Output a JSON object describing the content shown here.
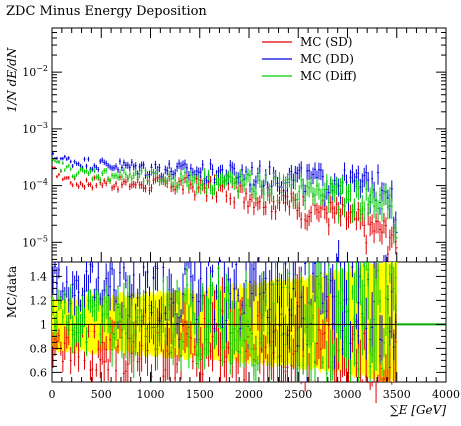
{
  "title": "ZDC Minus Energy Deposition",
  "chart_data": [
    {
      "type": "scatter",
      "panel": "main",
      "title": "ZDC Minus Energy Deposition",
      "ylabel": "1/N dE/dN",
      "xlabel": "",
      "x_range": [
        0,
        4000
      ],
      "y_range": [
        4.5e-06,
        0.06
      ],
      "y_scale": "log",
      "y_ticks": [
        {
          "value": 1e-05,
          "label": "10^-5"
        },
        {
          "value": 0.0001,
          "label": "10^-4"
        },
        {
          "value": 0.001,
          "label": "10^-3"
        },
        {
          "value": 0.01,
          "label": "10^-2"
        }
      ],
      "legend_position": "top-right",
      "series": [
        {
          "name": "MC (SD)",
          "color": "#e00000",
          "x": [
            25,
            250,
            500,
            750,
            1000,
            1250,
            1500,
            1750,
            2000,
            2250,
            2500,
            2750,
            3000,
            3250,
            3450,
            3500
          ],
          "values": [
            0.00018,
            0.00011,
            0.00012,
            0.00011,
            0.00011,
            0.00011,
            0.0001,
            9e-05,
            7.5e-05,
            6e-05,
            5e-05,
            4e-05,
            3e-05,
            2e-05,
            1.5e-05,
            8e-06
          ]
        },
        {
          "name": "MC (DD)",
          "color": "#0000dd",
          "x": [
            25,
            250,
            500,
            750,
            1000,
            1250,
            1500,
            1750,
            2000,
            2250,
            2500,
            2750,
            3000,
            3250,
            3450,
            3500
          ],
          "values": [
            0.00032,
            0.00026,
            0.00024,
            0.00022,
            0.0002,
            0.00019,
            0.00018,
            0.00017,
            0.00016,
            0.00015,
            0.00014,
            0.00013,
            0.00012,
            0.00011,
            0.0001,
            1.5e-05
          ]
        },
        {
          "name": "MC (Diff)",
          "color": "#00cc00",
          "x": [
            25,
            250,
            500,
            750,
            1000,
            1250,
            1500,
            1750,
            2000,
            2250,
            2500,
            2750,
            3000,
            3250,
            3450,
            3500
          ],
          "values": [
            0.00025,
            0.00017,
            0.00016,
            0.00015,
            0.00014,
            0.00013,
            0.00013,
            0.00012,
            0.00011,
            0.0001,
            9e-05,
            8e-05,
            7e-05,
            6e-05,
            5e-05,
            1.2e-05
          ]
        }
      ]
    },
    {
      "type": "area",
      "panel": "ratio",
      "ylabel": "MC/data",
      "xlabel": "∑E [GeV]",
      "x_range": [
        0,
        4000
      ],
      "y_range": [
        0.52,
        1.52
      ],
      "x_ticks": [
        0,
        500,
        1000,
        1500,
        2000,
        2500,
        3000,
        3500,
        4000
      ],
      "y_ticks": [
        0.6,
        0.8,
        1,
        1.2,
        1.4
      ],
      "reference_line": 1,
      "uncertainty_band": {
        "color": "#ffff00",
        "x": [
          0,
          500,
          1000,
          1500,
          2000,
          2500,
          3000,
          3500
        ],
        "lower": [
          0.82,
          0.8,
          0.78,
          0.75,
          0.72,
          0.68,
          0.62,
          0.55
        ],
        "upper": [
          1.18,
          1.2,
          1.22,
          1.25,
          1.3,
          1.35,
          1.42,
          1.5
        ]
      },
      "series": [
        {
          "name": "MC (SD)",
          "color": "#e00000",
          "x": [
            50,
            500,
            1000,
            1500,
            2000,
            2500,
            3000,
            3400
          ],
          "values": [
            0.85,
            0.8,
            0.82,
            0.85,
            0.8,
            0.78,
            0.75,
            0.7
          ]
        },
        {
          "name": "MC (DD)",
          "color": "#0000dd",
          "x": [
            50,
            500,
            1000,
            1500,
            2000,
            2500,
            3000,
            3400
          ],
          "values": [
            1.35,
            1.3,
            1.25,
            1.28,
            1.3,
            1.25,
            1.3,
            1.35
          ]
        },
        {
          "name": "MC (Diff)",
          "color": "#00cc00",
          "x": [
            50,
            500,
            1000,
            1500,
            2000,
            2500,
            3000,
            3400
          ],
          "values": [
            1.05,
            1.0,
            1.02,
            1.05,
            1.0,
            1.02,
            1.05,
            1.1
          ]
        }
      ]
    }
  ]
}
